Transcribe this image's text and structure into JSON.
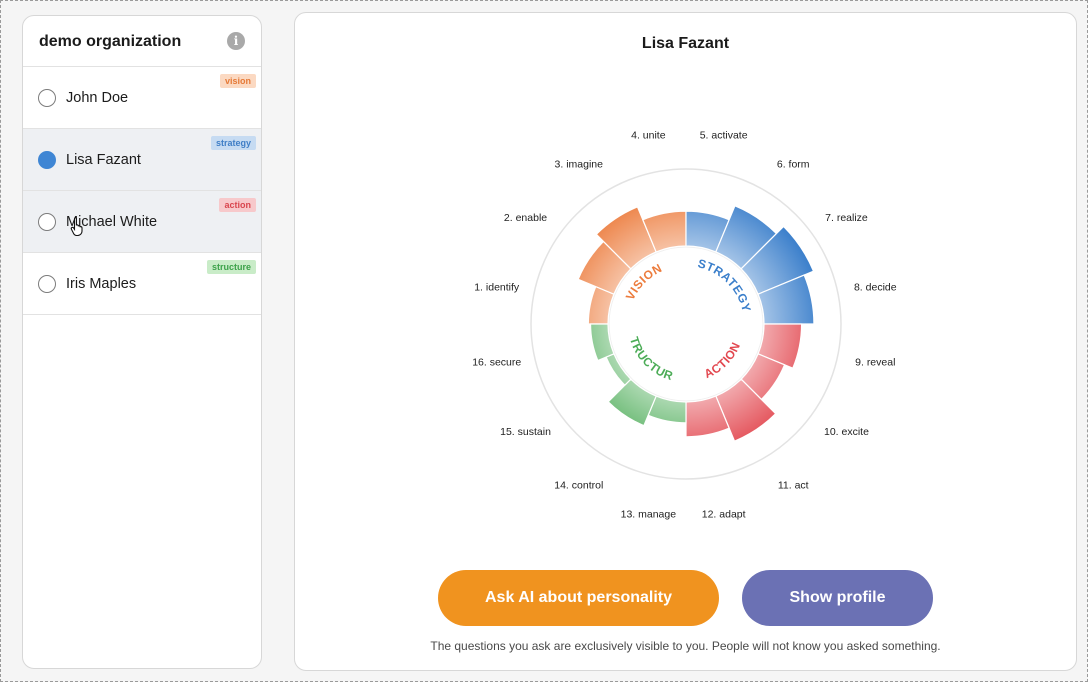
{
  "sidebar": {
    "org_name": "demo organization",
    "people": [
      {
        "name": "John Doe",
        "tag": "vision",
        "selected": false
      },
      {
        "name": "Lisa Fazant",
        "tag": "strategy",
        "selected": true
      },
      {
        "name": "Michael White",
        "tag": "action",
        "selected": false
      },
      {
        "name": "Iris Maples",
        "tag": "structure",
        "selected": false
      }
    ]
  },
  "main": {
    "title": "Lisa Fazant",
    "ask_button": "Ask AI about personality",
    "profile_button": "Show profile",
    "privacy_note": "The questions you ask are exclusively visible to you. People will not know you asked something."
  },
  "chart_data": {
    "type": "radial-bar",
    "quadrants": [
      {
        "label": "VISION",
        "color": "#ec7b3c"
      },
      {
        "label": "STRATEGY",
        "color": "#3b7fcb"
      },
      {
        "label": "ACTION",
        "color": "#e2474f"
      },
      {
        "label": "STRUCTURE",
        "color": "#4cac57"
      }
    ],
    "items": [
      {
        "label": "1. identify",
        "group": "VISION",
        "value": 0.28
      },
      {
        "label": "2. enable",
        "group": "VISION",
        "value": 0.62
      },
      {
        "label": "3. imagine",
        "group": "VISION",
        "value": 0.8
      },
      {
        "label": "4. unite",
        "group": "VISION",
        "value": 0.55
      },
      {
        "label": "5. activate",
        "group": "STRATEGY",
        "value": 0.55
      },
      {
        "label": "6. form",
        "group": "STRATEGY",
        "value": 0.82
      },
      {
        "label": "7. realize",
        "group": "STRATEGY",
        "value": 1.0
      },
      {
        "label": "8. decide",
        "group": "STRATEGY",
        "value": 0.82
      },
      {
        "label": "9. reveal",
        "group": "ACTION",
        "value": 0.6
      },
      {
        "label": "10. excite",
        "group": "ACTION",
        "value": 0.44
      },
      {
        "label": "11. act",
        "group": "ACTION",
        "value": 0.8
      },
      {
        "label": "12. adapt",
        "group": "ACTION",
        "value": 0.55
      },
      {
        "label": "13. manage",
        "group": "STRUCTURE",
        "value": 0.3
      },
      {
        "label": "14. control",
        "group": "STRUCTURE",
        "value": 0.5
      },
      {
        "label": "15. sustain",
        "group": "STRUCTURE",
        "value": 0.08
      },
      {
        "label": "16. secure",
        "group": "STRUCTURE",
        "value": 0.24
      }
    ]
  }
}
